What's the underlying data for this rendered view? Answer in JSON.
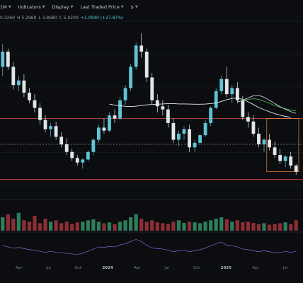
{
  "toolbar": {
    "interval": "1M",
    "indicators": "Indicators",
    "display": "Display",
    "price_type": "Last Traded Price",
    "currency": "$"
  },
  "ohlc": {
    "open": "0.3260",
    "high": "H 5.2960",
    "low": "L 3.8680",
    "close": "C 5.0200",
    "change": "+1.0940 (+27.87%)"
  },
  "colors": {
    "up": "#5fc4d6",
    "down": "#e2e5ea",
    "vol_up": "#2f7d5a",
    "vol_down": "#8b2f36",
    "ma_white": "#e9ebee",
    "ma_green": "#4caf50",
    "ma_gray": "#c8ccd2",
    "rsi": "#7a5bbf",
    "hline_red": "#d9534f",
    "hline_dashed": "#8a8f96",
    "box_orange": "#f0883e"
  },
  "chart_data": {
    "type": "candlestick",
    "x_ticks": [
      {
        "label": "Apr",
        "bold": false
      },
      {
        "label": "Jul",
        "bold": false
      },
      {
        "label": "Oct",
        "bold": false
      },
      {
        "label": "2024",
        "bold": true
      },
      {
        "label": "Apr",
        "bold": false
      },
      {
        "label": "Jul",
        "bold": false
      },
      {
        "label": "Oct",
        "bold": false
      },
      {
        "label": "2025",
        "bold": true
      },
      {
        "label": "Apr",
        "bold": false
      },
      {
        "label": "Jul",
        "bold": false
      }
    ],
    "candles": [
      [
        0.7,
        0.85,
        0.64,
        0.8
      ],
      [
        0.8,
        0.82,
        0.68,
        0.7
      ],
      [
        0.7,
        0.73,
        0.55,
        0.58
      ],
      [
        0.58,
        0.64,
        0.54,
        0.61
      ],
      [
        0.61,
        0.65,
        0.5,
        0.53
      ],
      [
        0.53,
        0.56,
        0.46,
        0.48
      ],
      [
        0.48,
        0.52,
        0.4,
        0.43
      ],
      [
        0.43,
        0.46,
        0.32,
        0.35
      ],
      [
        0.35,
        0.38,
        0.27,
        0.29
      ],
      [
        0.29,
        0.33,
        0.24,
        0.31
      ],
      [
        0.31,
        0.34,
        0.22,
        0.24
      ],
      [
        0.24,
        0.27,
        0.17,
        0.19
      ],
      [
        0.19,
        0.23,
        0.12,
        0.14
      ],
      [
        0.14,
        0.16,
        0.08,
        0.1
      ],
      [
        0.1,
        0.12,
        0.05,
        0.07
      ],
      [
        0.07,
        0.1,
        0.03,
        0.09
      ],
      [
        0.09,
        0.15,
        0.08,
        0.14
      ],
      [
        0.14,
        0.23,
        0.12,
        0.22
      ],
      [
        0.22,
        0.32,
        0.2,
        0.3
      ],
      [
        0.3,
        0.36,
        0.26,
        0.28
      ],
      [
        0.28,
        0.4,
        0.27,
        0.38
      ],
      [
        0.38,
        0.42,
        0.33,
        0.36
      ],
      [
        0.36,
        0.5,
        0.35,
        0.48
      ],
      [
        0.48,
        0.58,
        0.45,
        0.56
      ],
      [
        0.56,
        0.72,
        0.54,
        0.7
      ],
      [
        0.7,
        0.86,
        0.68,
        0.84
      ],
      [
        0.84,
        0.92,
        0.76,
        0.8
      ],
      [
        0.8,
        0.82,
        0.6,
        0.63
      ],
      [
        0.63,
        0.66,
        0.45,
        0.48
      ],
      [
        0.48,
        0.52,
        0.4,
        0.44
      ],
      [
        0.44,
        0.48,
        0.38,
        0.42
      ],
      [
        0.42,
        0.45,
        0.3,
        0.33
      ],
      [
        0.33,
        0.36,
        0.2,
        0.22
      ],
      [
        0.22,
        0.28,
        0.18,
        0.26
      ],
      [
        0.26,
        0.31,
        0.22,
        0.29
      ],
      [
        0.29,
        0.32,
        0.14,
        0.17
      ],
      [
        0.17,
        0.22,
        0.14,
        0.2
      ],
      [
        0.2,
        0.26,
        0.19,
        0.25
      ],
      [
        0.25,
        0.35,
        0.24,
        0.33
      ],
      [
        0.33,
        0.44,
        0.31,
        0.43
      ],
      [
        0.43,
        0.56,
        0.42,
        0.54
      ],
      [
        0.54,
        0.64,
        0.52,
        0.62
      ],
      [
        0.62,
        0.7,
        0.5,
        0.52
      ],
      [
        0.52,
        0.58,
        0.46,
        0.56
      ],
      [
        0.56,
        0.6,
        0.46,
        0.48
      ],
      [
        0.48,
        0.51,
        0.35,
        0.37
      ],
      [
        0.37,
        0.4,
        0.3,
        0.34
      ],
      [
        0.34,
        0.38,
        0.24,
        0.26
      ],
      [
        0.26,
        0.3,
        0.17,
        0.19
      ],
      [
        0.19,
        0.23,
        0.14,
        0.22
      ],
      [
        0.22,
        0.26,
        0.15,
        0.17
      ],
      [
        0.17,
        0.21,
        0.1,
        0.12
      ],
      [
        0.12,
        0.16,
        0.06,
        0.08
      ],
      [
        0.08,
        0.12,
        0.04,
        0.11
      ],
      [
        0.11,
        0.14,
        0.03,
        0.05
      ],
      [
        0.05,
        0.06,
        -0.01,
        0.01
      ]
    ],
    "y_range": [
      -0.08,
      1.0
    ],
    "moving_averages": [
      {
        "color_key": "ma_white",
        "start": 20,
        "values": [
          0.455,
          0.448,
          0.444,
          0.44,
          0.438,
          0.441,
          0.445,
          0.45,
          0.452,
          0.454,
          0.456,
          0.458,
          0.458,
          0.456,
          0.456,
          0.455,
          0.454,
          0.454,
          0.455,
          0.458,
          0.462,
          0.472,
          0.484,
          0.492,
          0.494,
          0.486,
          0.47,
          0.452,
          0.432,
          0.418,
          0.404,
          0.392,
          0.382,
          0.374,
          0.368
        ]
      },
      {
        "color_key": "ma_green",
        "start": 44,
        "values": [
          0.47,
          0.478,
          0.486,
          0.49,
          0.486,
          0.474,
          0.46,
          0.446,
          0.434,
          0.424,
          0.416,
          0.41
        ]
      },
      {
        "color_key": "ma_gray",
        "start": 44,
        "values": [
          0.468,
          0.48,
          0.496,
          0.51,
          0.512,
          0.5,
          0.48,
          0.458,
          0.438,
          0.42,
          0.405,
          0.394
        ]
      }
    ],
    "volume": [
      0.45,
      0.55,
      0.4,
      0.6,
      0.35,
      0.3,
      0.5,
      0.25,
      0.4,
      0.3,
      0.35,
      0.25,
      0.3,
      0.22,
      0.28,
      0.3,
      0.35,
      0.38,
      0.3,
      0.25,
      0.28,
      0.22,
      0.3,
      0.35,
      0.45,
      0.55,
      0.4,
      0.3,
      0.35,
      0.28,
      0.25,
      0.22,
      0.3,
      0.35,
      0.26,
      0.3,
      0.28,
      0.25,
      0.3,
      0.35,
      0.4,
      0.45,
      0.38,
      0.3,
      0.35,
      0.28,
      0.3,
      0.26,
      0.22,
      0.25,
      0.2,
      0.22,
      0.25,
      0.28,
      0.22,
      0.35
    ],
    "rsi": [
      0.55,
      0.5,
      0.45,
      0.48,
      0.44,
      0.4,
      0.38,
      0.34,
      0.3,
      0.34,
      0.3,
      0.28,
      0.26,
      0.24,
      0.22,
      0.26,
      0.34,
      0.42,
      0.5,
      0.48,
      0.52,
      0.5,
      0.58,
      0.62,
      0.7,
      0.78,
      0.7,
      0.56,
      0.46,
      0.44,
      0.42,
      0.38,
      0.32,
      0.36,
      0.38,
      0.32,
      0.36,
      0.4,
      0.46,
      0.54,
      0.62,
      0.68,
      0.56,
      0.54,
      0.5,
      0.42,
      0.4,
      0.36,
      0.32,
      0.36,
      0.32,
      0.3,
      0.28,
      0.34,
      0.3,
      0.34
    ],
    "hlines": [
      {
        "value": 0.36,
        "color_key": "hline_red",
        "style": "solid"
      },
      {
        "value": 0.19,
        "color_key": "hline_dashed",
        "style": "dashed"
      },
      {
        "value": -0.04,
        "color_key": "hline_red",
        "style": "solid"
      }
    ],
    "box": {
      "start": 50,
      "end": 55,
      "top": 0.36,
      "bottom": 0.01,
      "color_key": "box_orange"
    }
  }
}
